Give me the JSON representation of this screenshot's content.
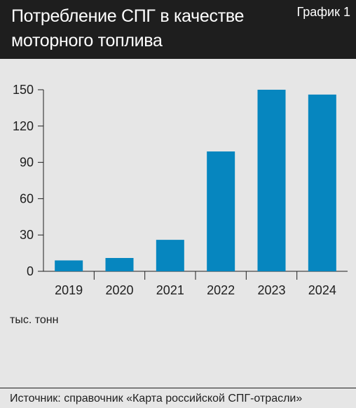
{
  "header": {
    "title": "Потребление СПГ в качестве моторного топлива",
    "label": "График 1"
  },
  "unit": "тыс. тонн",
  "source": "Источник: справочник «Карта российской СПГ-отрасли»",
  "colors": {
    "bar": "#0686bf",
    "header_bg": "#1e1e1e",
    "background": "#e6e6e6"
  },
  "chart_data": {
    "type": "bar",
    "categories": [
      "2019",
      "2020",
      "2021",
      "2022",
      "2023",
      "2024"
    ],
    "values": [
      9,
      11,
      26,
      99,
      150,
      146
    ],
    "yticks": [
      0,
      30,
      60,
      90,
      120,
      150
    ],
    "ylim": [
      0,
      150
    ],
    "ylabel": "тыс. тонн",
    "xlabel": "",
    "grid": false,
    "legend": "none"
  }
}
